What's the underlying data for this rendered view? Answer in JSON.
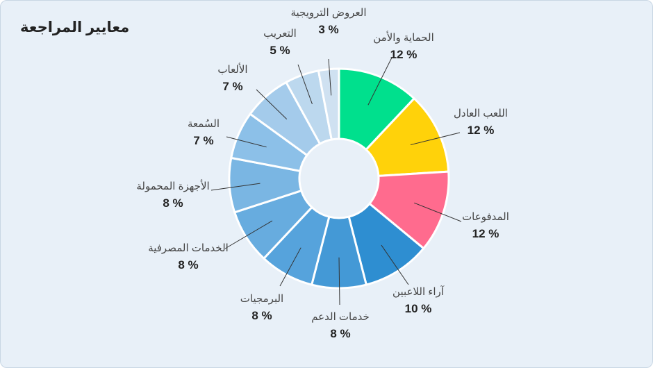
{
  "chart_data": {
    "type": "donut",
    "title": "معايير المراجعة",
    "unit": "%",
    "slices": [
      {
        "label": "الحماية والأمن",
        "value": 12,
        "color": "#00e08d"
      },
      {
        "label": "اللعب العادل",
        "value": 12,
        "color": "#ffd20a"
      },
      {
        "label": "المدفوعات",
        "value": 12,
        "color": "#ff6b8e"
      },
      {
        "label": "آراء اللاعبين",
        "value": 10,
        "color": "#2e8ed1"
      },
      {
        "label": "خدمات الدعم",
        "value": 8,
        "color": "#4499d6"
      },
      {
        "label": "البرمجيات",
        "value": 8,
        "color": "#56a3dc"
      },
      {
        "label": "الخدمات المصرفية",
        "value": 8,
        "color": "#67acdf"
      },
      {
        "label": "الأجهزة المحمولة",
        "value": 8,
        "color": "#7ab6e3"
      },
      {
        "label": "السُمعة",
        "value": 7,
        "color": "#8cc0e8"
      },
      {
        "label": "الألعاب",
        "value": 7,
        "color": "#a4cbeb"
      },
      {
        "label": "التعريب",
        "value": 5,
        "color": "#bcd8ee"
      },
      {
        "label": "العروض الترويجية",
        "value": 3,
        "color": "#cfe1f1"
      }
    ]
  }
}
